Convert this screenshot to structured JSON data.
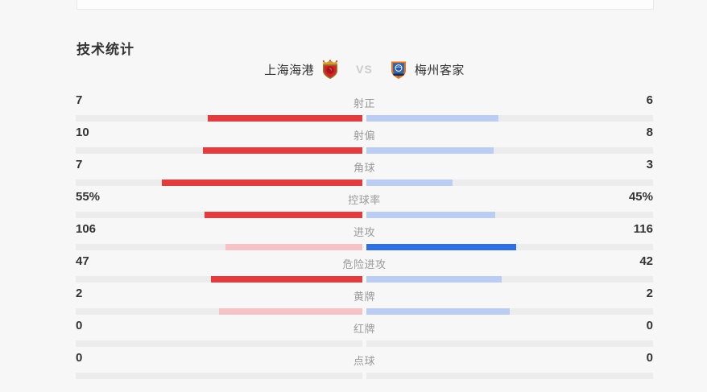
{
  "page": {
    "background_color": "#f7f7f7",
    "title": "技术统计"
  },
  "header": {
    "home_team": "上海海港",
    "away_team": "梅州客家",
    "vs_label": "VS",
    "home_badge_icon": "red-shield-gold-crown-crest",
    "away_badge_icon": "orange-blue-globe-crest"
  },
  "chart_data": {
    "type": "bar",
    "subtype": "bidirectional-team-comparison",
    "title": "技术统计",
    "teams": [
      "上海海港",
      "梅州客家"
    ],
    "legend_position": "top-center",
    "bar_rule": "each bar width = value / (home+away) share of its half track, growing outward from center",
    "colors": {
      "home_strong": "#e43b3f",
      "home_light": "#f5c3c5",
      "away_strong": "#2f6fe1",
      "away_light": "#bccdf3",
      "track": "#ececec"
    },
    "rows": [
      {
        "label": "射正",
        "home_display": "7",
        "away_display": "6",
        "home": 7,
        "away": 6,
        "home_color": "#e43b3f",
        "away_color": "#bccdf3"
      },
      {
        "label": "射偏",
        "home_display": "10",
        "away_display": "8",
        "home": 10,
        "away": 8,
        "home_color": "#e43b3f",
        "away_color": "#bccdf3"
      },
      {
        "label": "角球",
        "home_display": "7",
        "away_display": "3",
        "home": 7,
        "away": 3,
        "home_color": "#e43b3f",
        "away_color": "#bccdf3"
      },
      {
        "label": "控球率",
        "home_display": "55%",
        "away_display": "45%",
        "home": 55,
        "away": 45,
        "home_color": "#e43b3f",
        "away_color": "#bccdf3"
      },
      {
        "label": "进攻",
        "home_display": "106",
        "away_display": "116",
        "home": 106,
        "away": 116,
        "home_color": "#f5c3c5",
        "away_color": "#2f6fe1"
      },
      {
        "label": "危险进攻",
        "home_display": "47",
        "away_display": "42",
        "home": 47,
        "away": 42,
        "home_color": "#e43b3f",
        "away_color": "#bccdf3"
      },
      {
        "label": "黄牌",
        "home_display": "2",
        "away_display": "2",
        "home": 2,
        "away": 2,
        "home_color": "#f5c3c5",
        "away_color": "#bccdf3"
      },
      {
        "label": "红牌",
        "home_display": "0",
        "away_display": "0",
        "home": 0,
        "away": 0,
        "home_color": "#f5c3c5",
        "away_color": "#bccdf3"
      },
      {
        "label": "点球",
        "home_display": "0",
        "away_display": "0",
        "home": 0,
        "away": 0,
        "home_color": "#f5c3c5",
        "away_color": "#bccdf3"
      }
    ]
  }
}
